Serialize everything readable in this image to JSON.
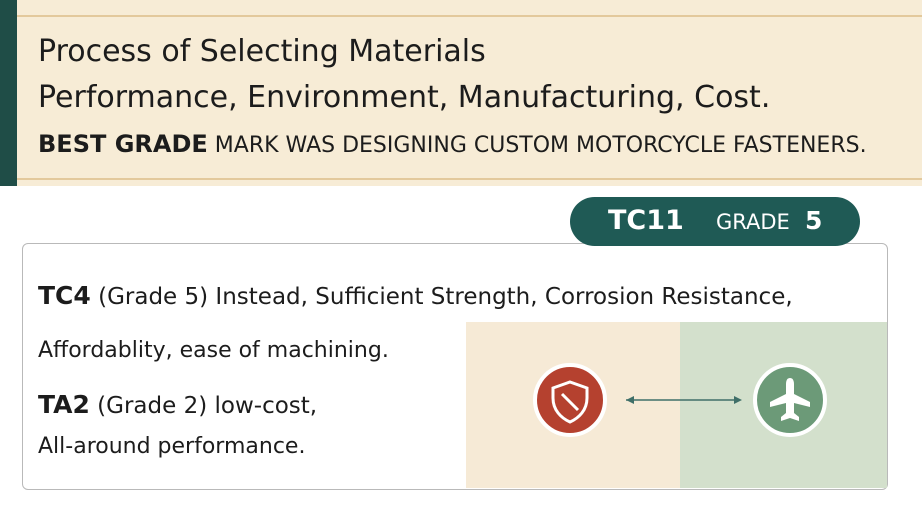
{
  "header": {
    "title": "Process of Selecting Materials",
    "subtitle": "Performance, Environment, Manufacturing, Cost.",
    "tagline_bold": "BEST GRADE",
    "tagline": "MARK WAS DESIGNING CUSTOM MOTORCYCLE FASTENERS."
  },
  "badge": {
    "code": "TC11",
    "label": "GRADE",
    "grade": "5"
  },
  "card": {
    "lines": [
      {
        "bold": "TC4",
        "text": "(Grade 5) Instead, Sufficient Strength, Corrosion Resistance,"
      },
      {
        "text": "Affordablity, ease of machining."
      },
      {
        "bold": "TA2",
        "text": "(Grade 2) low-cost,"
      },
      {
        "text": "All-around performance."
      }
    ]
  }
}
